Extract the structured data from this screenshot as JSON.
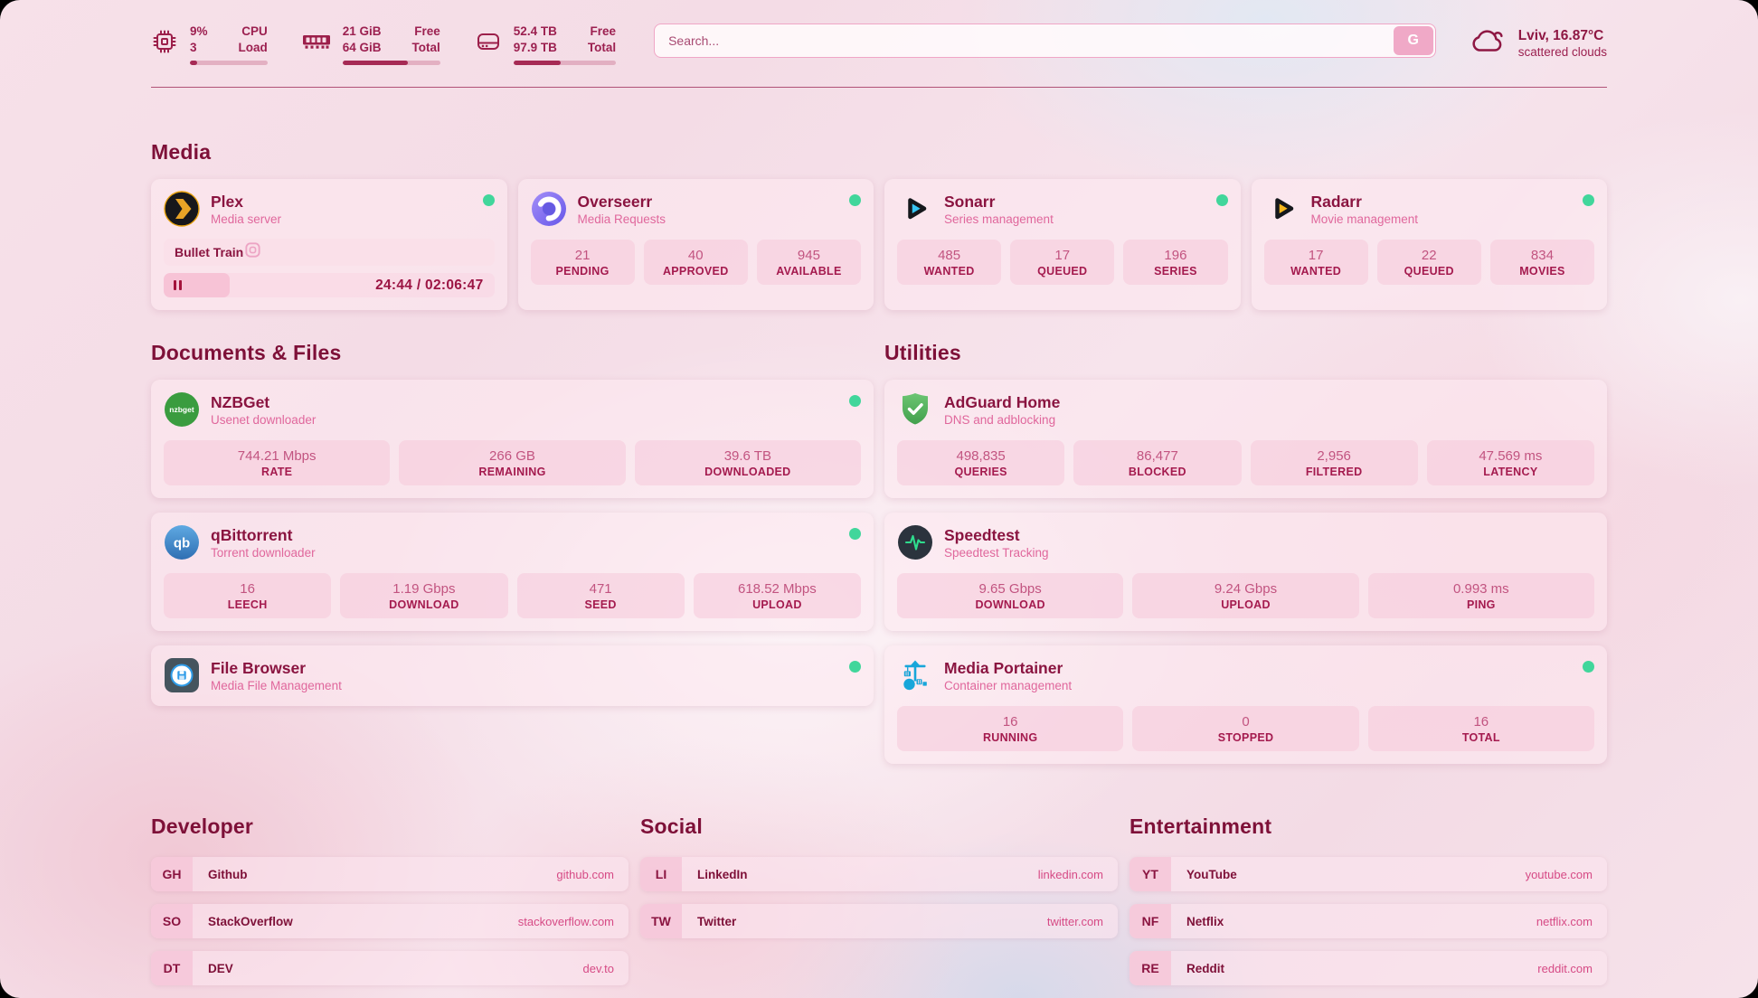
{
  "colors": {
    "accent": "#a4133c",
    "status_online": "#41d69b"
  },
  "header": {
    "stats": [
      {
        "icon": "cpu-icon",
        "value_top": "9%",
        "value_bottom": "3",
        "label_top": "CPU",
        "label_bottom": "Load",
        "progress_pct": 9
      },
      {
        "icon": "memory-icon",
        "value_top": "21 GiB",
        "value_bottom": "64 GiB",
        "label_top": "Free",
        "label_bottom": "Total",
        "progress_pct": 67
      },
      {
        "icon": "disk-icon",
        "value_top": "52.4 TB",
        "value_bottom": "97.9 TB",
        "label_top": "Free",
        "label_bottom": "Total",
        "progress_pct": 46
      }
    ],
    "search": {
      "placeholder": "Search...",
      "button_label": "G"
    },
    "weather": {
      "icon": "cloud-icon",
      "location": "Lviv, 16.87°C",
      "condition": "scattered clouds"
    }
  },
  "sections": {
    "media": "Media",
    "documents": "Documents & Files",
    "utilities": "Utilities",
    "developer": "Developer",
    "social": "Social",
    "entertainment": "Entertainment"
  },
  "apps": {
    "plex": {
      "icon": "plex-icon",
      "title": "Plex",
      "subtitle": "Media server",
      "status": "online",
      "now_playing": "Bullet Train",
      "time": "24:44 / 02:06:47",
      "progress_pct": 20
    },
    "overseerr": {
      "icon": "overseerr-icon",
      "title": "Overseerr",
      "subtitle": "Media Requests",
      "status": "online",
      "stats": [
        {
          "value": "21",
          "label": "PENDING"
        },
        {
          "value": "40",
          "label": "APPROVED"
        },
        {
          "value": "945",
          "label": "AVAILABLE"
        }
      ]
    },
    "sonarr": {
      "icon": "sonarr-icon",
      "title": "Sonarr",
      "subtitle": "Series management",
      "status": "online",
      "stats": [
        {
          "value": "485",
          "label": "WANTED"
        },
        {
          "value": "17",
          "label": "QUEUED"
        },
        {
          "value": "196",
          "label": "SERIES"
        }
      ]
    },
    "radarr": {
      "icon": "radarr-icon",
      "title": "Radarr",
      "subtitle": "Movie management",
      "status": "online",
      "stats": [
        {
          "value": "17",
          "label": "WANTED"
        },
        {
          "value": "22",
          "label": "QUEUED"
        },
        {
          "value": "834",
          "label": "MOVIES"
        }
      ]
    },
    "nzbget": {
      "icon": "nzbget-icon",
      "icon_text": "nzbget",
      "title": "NZBGet",
      "subtitle": "Usenet downloader",
      "status": "online",
      "stats": [
        {
          "value": "744.21 Mbps",
          "label": "RATE"
        },
        {
          "value": "266 GB",
          "label": "REMAINING"
        },
        {
          "value": "39.6 TB",
          "label": "DOWNLOADED"
        }
      ]
    },
    "qbittorrent": {
      "icon": "qbittorrent-icon",
      "icon_text": "qb",
      "title": "qBittorrent",
      "subtitle": "Torrent downloader",
      "status": "online",
      "stats": [
        {
          "value": "16",
          "label": "LEECH"
        },
        {
          "value": "1.19 Gbps",
          "label": "DOWNLOAD"
        },
        {
          "value": "471",
          "label": "SEED"
        },
        {
          "value": "618.52 Mbps",
          "label": "UPLOAD"
        }
      ]
    },
    "filebrowser": {
      "icon": "filebrowser-icon",
      "title": "File Browser",
      "subtitle": "Media File Management",
      "status": "online"
    },
    "adguard": {
      "icon": "adguard-icon",
      "title": "AdGuard Home",
      "subtitle": "DNS and adblocking",
      "stats": [
        {
          "value": "498,835",
          "label": "QUERIES"
        },
        {
          "value": "86,477",
          "label": "BLOCKED"
        },
        {
          "value": "2,956",
          "label": "FILTERED"
        },
        {
          "value": "47.569 ms",
          "label": "LATENCY"
        }
      ]
    },
    "speedtest": {
      "icon": "speedtest-icon",
      "title": "Speedtest",
      "subtitle": "Speedtest Tracking",
      "stats": [
        {
          "value": "9.65 Gbps",
          "label": "DOWNLOAD"
        },
        {
          "value": "9.24 Gbps",
          "label": "UPLOAD"
        },
        {
          "value": "0.993 ms",
          "label": "PING"
        }
      ]
    },
    "portainer": {
      "icon": "portainer-icon",
      "title": "Media Portainer",
      "subtitle": "Container management",
      "status": "online",
      "stats": [
        {
          "value": "16",
          "label": "RUNNING"
        },
        {
          "value": "0",
          "label": "STOPPED"
        },
        {
          "value": "16",
          "label": "TOTAL"
        }
      ]
    }
  },
  "links": {
    "developer": [
      {
        "abbr": "GH",
        "name": "Github",
        "url": "github.com"
      },
      {
        "abbr": "SO",
        "name": "StackOverflow",
        "url": "stackoverflow.com"
      },
      {
        "abbr": "DT",
        "name": "DEV",
        "url": "dev.to"
      }
    ],
    "social": [
      {
        "abbr": "LI",
        "name": "LinkedIn",
        "url": "linkedin.com"
      },
      {
        "abbr": "TW",
        "name": "Twitter",
        "url": "twitter.com"
      }
    ],
    "entertainment": [
      {
        "abbr": "YT",
        "name": "YouTube",
        "url": "youtube.com"
      },
      {
        "abbr": "NF",
        "name": "Netflix",
        "url": "netflix.com"
      },
      {
        "abbr": "RE",
        "name": "Reddit",
        "url": "reddit.com"
      }
    ]
  }
}
